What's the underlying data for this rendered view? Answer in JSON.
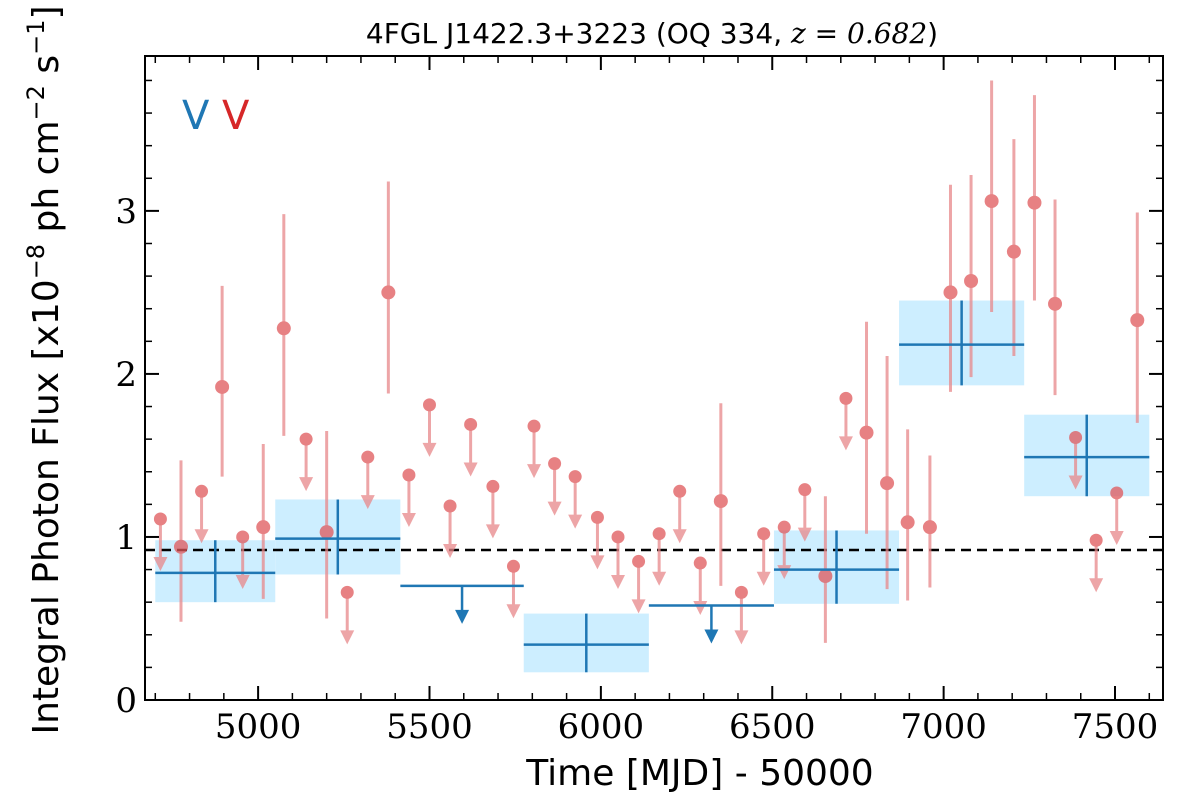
{
  "chart_data": {
    "type": "scatter",
    "title_main": "4FGL J1422.3+3223 (OQ 334, ",
    "title_z": "z = 0.682",
    "title_end": ")",
    "xlabel": "Time [MJD] - 50000",
    "ylabel_main": "Integral Photon Flux [x10",
    "ylabel_exp1": "−8",
    "ylabel_mid": " ph cm",
    "ylabel_exp2": "−2",
    "ylabel_s": " s",
    "ylabel_exp3": "−1",
    "ylabel_end": "]",
    "xlim": [
      4670,
      7640
    ],
    "ylim": [
      0,
      3.95
    ],
    "x_ticks": [
      5000,
      5500,
      6000,
      6500,
      7000,
      7500
    ],
    "y_ticks": [
      0,
      1,
      2,
      3
    ],
    "x_tick_labels": [
      "5000",
      "5500",
      "6000",
      "6500",
      "7000",
      "7500"
    ],
    "y_tick_labels": [
      "0",
      "1",
      "2",
      "3"
    ],
    "reference_level": 0.92,
    "legend": [
      {
        "label": "V",
        "color": "#1f77b4"
      },
      {
        "label": "V",
        "color": "#d62728"
      }
    ],
    "colors": {
      "series_blue": "#1f77b4",
      "series_red": "#e8888a",
      "band_fill": "#cdeeff",
      "ref_line": "#000000"
    },
    "series": [
      {
        "kind": "long_bins",
        "points": [
          {
            "x0": 4700,
            "x1": 5050,
            "y": 0.78,
            "lo": 0.6,
            "hi": 0.98,
            "ul": false
          },
          {
            "x0": 5050,
            "x1": 5415,
            "y": 0.99,
            "lo": 0.77,
            "hi": 1.23,
            "ul": false
          },
          {
            "x0": 5415,
            "x1": 5775,
            "y": 0.7,
            "ul": true
          },
          {
            "x0": 5775,
            "x1": 6140,
            "y": 0.34,
            "lo": 0.17,
            "hi": 0.53,
            "ul": false
          },
          {
            "x0": 6140,
            "x1": 6505,
            "y": 0.58,
            "ul": true
          },
          {
            "x0": 6505,
            "x1": 6870,
            "y": 0.8,
            "lo": 0.59,
            "hi": 1.04,
            "ul": false
          },
          {
            "x0": 6870,
            "x1": 7235,
            "y": 2.18,
            "lo": 1.93,
            "hi": 2.45,
            "ul": false
          },
          {
            "x0": 7235,
            "x1": 7600,
            "y": 1.49,
            "lo": 1.25,
            "hi": 1.75,
            "ul": false
          }
        ]
      },
      {
        "kind": "short_bins",
        "points": [
          {
            "x": 4715,
            "y": 1.11,
            "ul": true
          },
          {
            "x": 4775,
            "y": 0.94,
            "lo": 0.48,
            "hi": 1.47,
            "ul": false
          },
          {
            "x": 4835,
            "y": 1.28,
            "ul": true
          },
          {
            "x": 4895,
            "y": 1.92,
            "lo": 1.37,
            "hi": 2.54,
            "ul": false
          },
          {
            "x": 4955,
            "y": 1.0,
            "ul": true
          },
          {
            "x": 5015,
            "y": 1.06,
            "lo": 0.62,
            "hi": 1.57,
            "ul": false
          },
          {
            "x": 5075,
            "y": 2.28,
            "lo": 1.62,
            "hi": 2.98,
            "ul": false
          },
          {
            "x": 5140,
            "y": 1.6,
            "ul": true
          },
          {
            "x": 5200,
            "y": 1.03,
            "lo": 0.5,
            "hi": 1.65,
            "ul": false
          },
          {
            "x": 5260,
            "y": 0.66,
            "ul": true
          },
          {
            "x": 5320,
            "y": 1.49,
            "ul": true
          },
          {
            "x": 5380,
            "y": 2.5,
            "lo": 1.88,
            "hi": 3.18,
            "ul": false
          },
          {
            "x": 5440,
            "y": 1.38,
            "ul": true
          },
          {
            "x": 5500,
            "y": 1.81,
            "ul": true
          },
          {
            "x": 5560,
            "y": 1.19,
            "ul": true
          },
          {
            "x": 5620,
            "y": 1.69,
            "ul": true
          },
          {
            "x": 5685,
            "y": 1.31,
            "ul": true
          },
          {
            "x": 5745,
            "y": 0.82,
            "ul": true
          },
          {
            "x": 5805,
            "y": 1.68,
            "ul": true
          },
          {
            "x": 5865,
            "y": 1.45,
            "ul": true
          },
          {
            "x": 5925,
            "y": 1.37,
            "ul": true
          },
          {
            "x": 5990,
            "y": 1.12,
            "ul": true
          },
          {
            "x": 6050,
            "y": 1.0,
            "ul": true
          },
          {
            "x": 6110,
            "y": 0.85,
            "ul": true
          },
          {
            "x": 6170,
            "y": 1.02,
            "ul": true
          },
          {
            "x": 6230,
            "y": 1.28,
            "ul": true
          },
          {
            "x": 6290,
            "y": 0.84,
            "ul": true
          },
          {
            "x": 6350,
            "y": 1.22,
            "lo": 0.7,
            "hi": 1.82,
            "ul": false
          },
          {
            "x": 6410,
            "y": 0.66,
            "ul": true
          },
          {
            "x": 6475,
            "y": 1.02,
            "ul": true
          },
          {
            "x": 6535,
            "y": 1.06,
            "ul": true
          },
          {
            "x": 6595,
            "y": 1.29,
            "ul": true
          },
          {
            "x": 6655,
            "y": 0.76,
            "lo": 0.35,
            "hi": 1.25,
            "ul": false
          },
          {
            "x": 6715,
            "y": 1.85,
            "ul": true
          },
          {
            "x": 6775,
            "y": 1.64,
            "lo": 1.02,
            "hi": 2.32,
            "ul": false
          },
          {
            "x": 6835,
            "y": 1.33,
            "lo": 0.68,
            "hi": 2.11,
            "ul": false
          },
          {
            "x": 6895,
            "y": 1.09,
            "lo": 0.61,
            "hi": 1.66,
            "ul": false
          },
          {
            "x": 6960,
            "y": 1.06,
            "lo": 0.69,
            "hi": 1.5,
            "ul": false
          },
          {
            "x": 7020,
            "y": 2.5,
            "lo": 1.89,
            "hi": 3.16,
            "ul": false
          },
          {
            "x": 7080,
            "y": 2.57,
            "lo": 1.98,
            "hi": 3.22,
            "ul": false
          },
          {
            "x": 7140,
            "y": 3.06,
            "lo": 2.38,
            "hi": 3.8,
            "ul": false
          },
          {
            "x": 7205,
            "y": 2.75,
            "lo": 2.11,
            "hi": 3.44,
            "ul": false
          },
          {
            "x": 7265,
            "y": 3.05,
            "lo": 2.45,
            "hi": 3.71,
            "ul": false
          },
          {
            "x": 7325,
            "y": 2.43,
            "lo": 1.87,
            "hi": 3.07,
            "ul": false
          },
          {
            "x": 7385,
            "y": 1.61,
            "ul": true
          },
          {
            "x": 7445,
            "y": 0.98,
            "ul": true
          },
          {
            "x": 7505,
            "y": 1.27,
            "ul": true
          },
          {
            "x": 7565,
            "y": 2.33,
            "lo": 1.7,
            "hi": 2.99,
            "ul": false
          }
        ]
      }
    ]
  }
}
